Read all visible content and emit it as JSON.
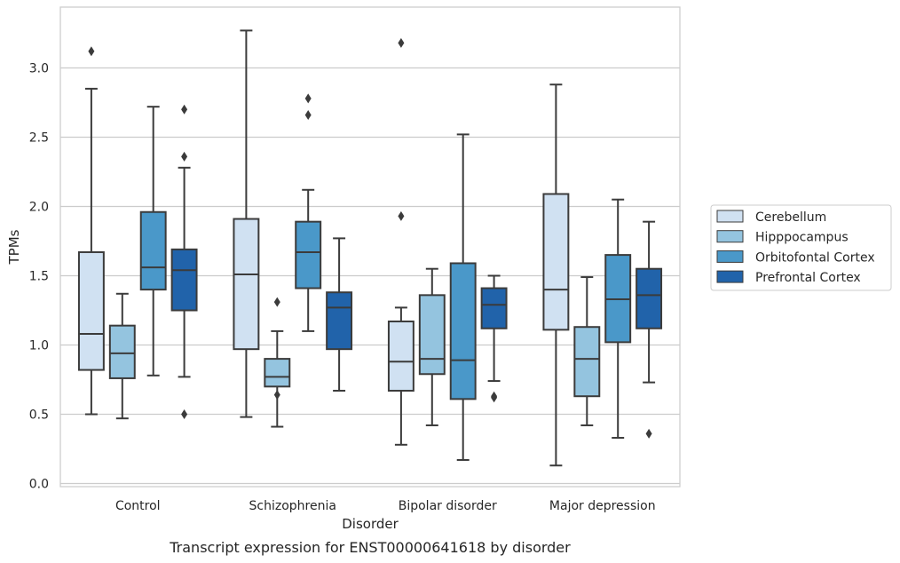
{
  "caption": "Transcript expression for ENST00000641618 by disorder",
  "chart_data": {
    "type": "box",
    "xlabel": "Disorder",
    "ylabel": "TPMs",
    "ylim": [
      -0.02,
      3.44
    ],
    "yticks": [
      "0.0",
      "0.5",
      "1.0",
      "1.5",
      "2.0",
      "2.5",
      "3.0"
    ],
    "categories": [
      "Control",
      "Schizophrenia",
      "Bipolar disorder",
      "Major depression"
    ],
    "grid": "horizontal",
    "legend_position": "right",
    "series": [
      {
        "name": "Cerebellum",
        "color": "#d0e1f2",
        "boxes": [
          {
            "whislo": 0.5,
            "q1": 0.82,
            "med": 1.08,
            "q3": 1.67,
            "whishi": 2.85,
            "fliers": [
              3.12
            ]
          },
          {
            "whislo": 0.48,
            "q1": 0.97,
            "med": 1.51,
            "q3": 1.91,
            "whishi": 3.27,
            "fliers": []
          },
          {
            "whislo": 0.28,
            "q1": 0.67,
            "med": 0.88,
            "q3": 1.17,
            "whishi": 1.27,
            "fliers": [
              1.93,
              3.18
            ]
          },
          {
            "whislo": 0.13,
            "q1": 1.11,
            "med": 1.4,
            "q3": 2.09,
            "whishi": 2.88,
            "fliers": []
          }
        ]
      },
      {
        "name": "Hipppocampus",
        "color": "#94c4df",
        "boxes": [
          {
            "whislo": 0.47,
            "q1": 0.76,
            "med": 0.94,
            "q3": 1.14,
            "whishi": 1.37,
            "fliers": []
          },
          {
            "whislo": 0.41,
            "q1": 0.7,
            "med": 0.77,
            "q3": 0.9,
            "whishi": 1.1,
            "fliers": [
              1.31,
              0.64
            ]
          },
          {
            "whislo": 0.42,
            "q1": 0.79,
            "med": 0.9,
            "q3": 1.36,
            "whishi": 1.55,
            "fliers": []
          },
          {
            "whislo": 0.42,
            "q1": 0.63,
            "med": 0.9,
            "q3": 1.13,
            "whishi": 1.49,
            "fliers": []
          }
        ]
      },
      {
        "name": "Orbitofontal Cortex",
        "color": "#4a98c9",
        "boxes": [
          {
            "whislo": 0.78,
            "q1": 1.4,
            "med": 1.56,
            "q3": 1.96,
            "whishi": 2.72,
            "fliers": []
          },
          {
            "whislo": 1.1,
            "q1": 1.41,
            "med": 1.67,
            "q3": 1.89,
            "whishi": 2.12,
            "fliers": [
              2.66,
              2.78
            ]
          },
          {
            "whislo": 0.17,
            "q1": 0.61,
            "med": 0.89,
            "q3": 1.59,
            "whishi": 2.52,
            "fliers": []
          },
          {
            "whislo": 0.33,
            "q1": 1.02,
            "med": 1.33,
            "q3": 1.65,
            "whishi": 2.05,
            "fliers": []
          }
        ]
      },
      {
        "name": "Prefrontal Cortex",
        "color": "#2163aa",
        "boxes": [
          {
            "whislo": 0.77,
            "q1": 1.25,
            "med": 1.54,
            "q3": 1.69,
            "whishi": 2.28,
            "fliers": [
              0.5,
              2.36,
              2.7
            ]
          },
          {
            "whislo": 0.67,
            "q1": 0.97,
            "med": 1.27,
            "q3": 1.38,
            "whishi": 1.77,
            "fliers": []
          },
          {
            "whislo": 0.74,
            "q1": 1.12,
            "med": 1.29,
            "q3": 1.41,
            "whishi": 1.5,
            "fliers": [
              0.62,
              0.63
            ]
          },
          {
            "whislo": 0.73,
            "q1": 1.12,
            "med": 1.36,
            "q3": 1.55,
            "whishi": 1.89,
            "fliers": [
              0.36
            ]
          }
        ]
      }
    ]
  }
}
